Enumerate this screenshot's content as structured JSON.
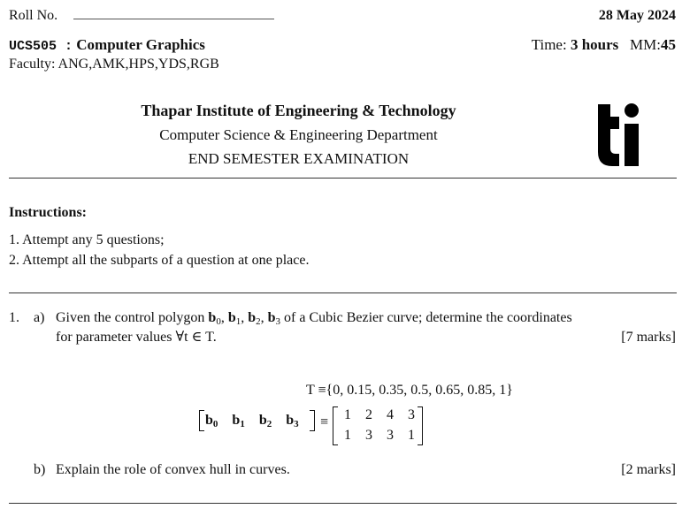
{
  "header": {
    "roll_label": "Roll No.",
    "date": "28 May 2024",
    "course_code": "UCS505 :",
    "course_name": "Computer Graphics",
    "time_label": "Time:",
    "time_value": "3 hours",
    "mm_label": "MM:",
    "mm_value": "45",
    "faculty": "Faculty: ANG,AMK,HPS,YDS,RGB",
    "institute": "Thapar Institute of Engineering & Technology",
    "department": "Computer Science & Engineering Department",
    "exam": "END SEMESTER EXAMINATION",
    "logo_text": "ti"
  },
  "instructions": {
    "title": "Instructions:",
    "items": [
      "1. Attempt any 5 questions;",
      "2. Attempt all the subparts of a question at one place."
    ]
  },
  "question1": {
    "number": "1.",
    "a": {
      "label": "a)",
      "text_pre": "Given the control polygon ",
      "vectors": "b",
      "text_post": " of a Cubic Bezier curve; determine the coordinates",
      "line2": "for parameter values ∀t ∈ T.",
      "marks": "[7 marks]",
      "set_eq": "T ≡{0, 0.15, 0.35, 0.5, 0.65, 0.85, 1}",
      "matrix_lhs": [
        "b",
        "b",
        "b",
        "b"
      ],
      "matrix_lhs_subs": [
        "0",
        "1",
        "2",
        "3"
      ],
      "equiv": "≡",
      "matrix": [
        [
          "1",
          "2",
          "4",
          "3"
        ],
        [
          "1",
          "3",
          "3",
          "1"
        ]
      ]
    },
    "b": {
      "label": "b)",
      "text": "Explain the role of convex hull in curves.",
      "marks": "[2 marks]"
    }
  }
}
